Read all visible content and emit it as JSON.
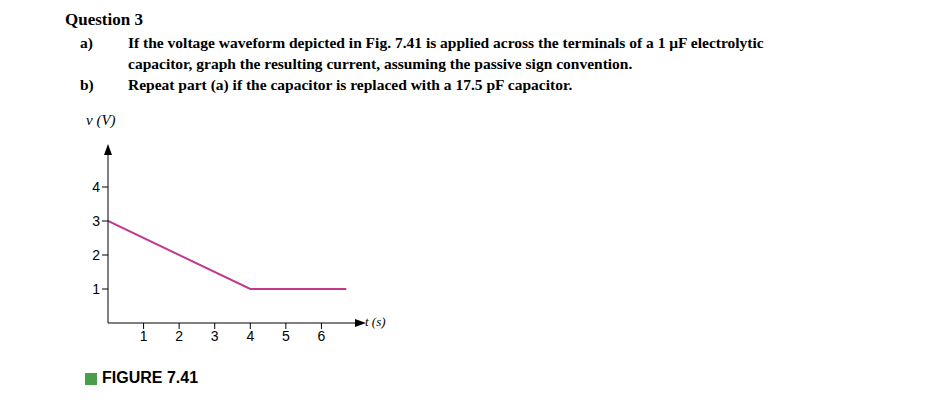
{
  "question": {
    "title": "Question 3",
    "parts": [
      {
        "label": "a)",
        "lines": [
          "If the voltage waveform depicted in Fig. 7.41 is applied across the terminals of a 1 μF electrolytic",
          "capacitor, graph the resulting current, assuming the passive sign convention."
        ]
      },
      {
        "label": "b)",
        "lines": [
          "Repeat part (a) if the capacitor is replaced with a 17.5 pF capacitor."
        ]
      }
    ]
  },
  "figure_caption": "FIGURE 7.41",
  "chart_data": {
    "type": "line",
    "x_label": "t (s)",
    "y_label": "v (V)",
    "x": [
      0,
      4,
      6.7
    ],
    "values": [
      3,
      1,
      1
    ],
    "color": "#c0398f",
    "xlim": [
      0,
      7
    ],
    "ylim": [
      0,
      5
    ],
    "xticks": [
      1,
      2,
      3,
      4,
      5,
      6
    ],
    "yticks": [
      1,
      2,
      3,
      4
    ],
    "grid": false
  }
}
